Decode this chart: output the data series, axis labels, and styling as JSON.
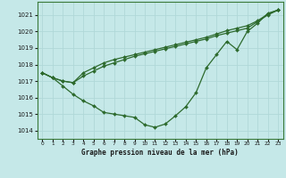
{
  "title": "Graphe pression niveau de la mer (hPa)",
  "x_ticks": [
    0,
    1,
    2,
    3,
    4,
    5,
    6,
    7,
    8,
    9,
    10,
    11,
    12,
    13,
    14,
    15,
    16,
    17,
    18,
    19,
    20,
    21,
    22,
    23
  ],
  "xlim": [
    -0.5,
    23.5
  ],
  "ylim": [
    1013.5,
    1021.8
  ],
  "y_ticks": [
    1014,
    1015,
    1016,
    1017,
    1018,
    1019,
    1020,
    1021
  ],
  "line_color": "#2d6a2d",
  "bg_color": "#c5e8e8",
  "grid_color": "#b0d8d8",
  "series": [
    [
      1017.5,
      1017.2,
      1016.7,
      1016.2,
      1015.8,
      1015.5,
      1015.1,
      1015.0,
      1014.9,
      1014.8,
      1014.35,
      1014.2,
      1014.4,
      1014.9,
      1015.45,
      1016.3,
      1017.8,
      1018.6,
      1019.4,
      1018.9,
      1020.0,
      1020.5,
      1021.1,
      1021.3
    ],
    [
      1017.5,
      1017.2,
      1017.0,
      1016.9,
      1017.3,
      1017.6,
      1017.9,
      1018.1,
      1018.3,
      1018.5,
      1018.65,
      1018.8,
      1018.95,
      1019.1,
      1019.25,
      1019.4,
      1019.55,
      1019.75,
      1019.9,
      1020.05,
      1020.2,
      1020.6,
      1021.0,
      1021.3
    ],
    [
      1017.5,
      1017.2,
      1017.0,
      1016.9,
      1017.5,
      1017.8,
      1018.1,
      1018.3,
      1018.45,
      1018.6,
      1018.75,
      1018.9,
      1019.05,
      1019.2,
      1019.35,
      1019.5,
      1019.65,
      1019.85,
      1020.05,
      1020.2,
      1020.35,
      1020.65,
      1021.05,
      1021.3
    ]
  ]
}
